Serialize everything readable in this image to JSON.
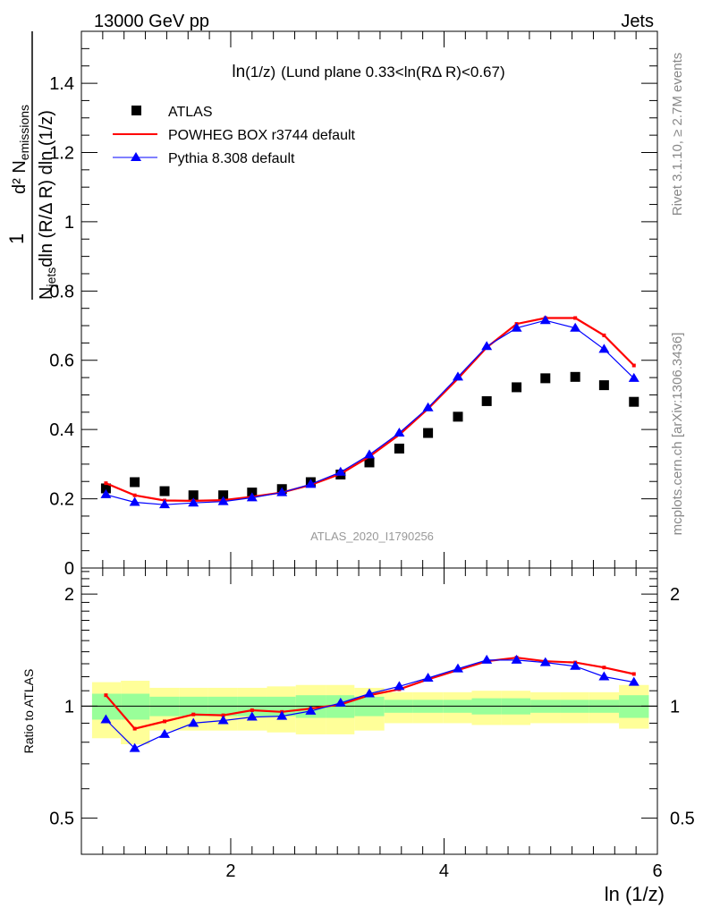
{
  "header": {
    "left": "13000 GeV pp",
    "right": "Jets"
  },
  "plot_title": {
    "main": "ln",
    "main_paren": "(1/z)",
    "rest": "(Lund plane 0.33<ln(RΔ R)<0.67)"
  },
  "ylabel": {
    "one": "1",
    "numerator": "d² N",
    "numerator_sub": "emissions",
    "denominator_a": "N",
    "denominator_sub": "jets",
    "denominator_b": "dln (R/Δ R) dln (1/z)"
  },
  "ratio_ylabel": "Ratio to ATLAS",
  "xlabel": "ln (1/z)",
  "analysis_id": "ATLAS_2020_I1790256",
  "side_text_top": "Rivet 3.1.10, ≥ 2.7M events",
  "side_text_bottom": "mcplots.cern.ch [arXiv:1306.3436]",
  "colors": {
    "atlas": "#000000",
    "powheg": "#ff0000",
    "pythia": "#0000ff",
    "band_inner": "#99ff99",
    "band_outer": "#ffff99"
  },
  "chart_data": [
    {
      "type": "line",
      "panel": "main",
      "xlim": [
        0.6,
        6.0
      ],
      "ylim": [
        0.0,
        1.55
      ],
      "y_ticks": [
        0,
        0.2,
        0.4,
        0.6,
        0.8,
        1,
        1.2,
        1.4
      ],
      "y_tick_labels": [
        "0",
        "0.2",
        "0.4",
        "0.6",
        "0.8",
        "1",
        "1.2",
        "1.4"
      ],
      "series": [
        {
          "name": "ATLAS",
          "marker": "square",
          "x": [
            0.83,
            1.1,
            1.38,
            1.65,
            1.93,
            2.2,
            2.48,
            2.75,
            3.03,
            3.3,
            3.58,
            3.85,
            4.13,
            4.4,
            4.68,
            4.95,
            5.23,
            5.5,
            5.78
          ],
          "y": [
            0.23,
            0.248,
            0.222,
            0.21,
            0.21,
            0.218,
            0.228,
            0.248,
            0.27,
            0.305,
            0.345,
            0.39,
            0.437,
            0.482,
            0.522,
            0.548,
            0.552,
            0.528,
            0.48
          ]
        },
        {
          "name": "POWHEG BOX r3744 default",
          "marker": "dot",
          "x": [
            0.83,
            1.1,
            1.38,
            1.65,
            1.93,
            2.2,
            2.48,
            2.75,
            3.03,
            3.3,
            3.58,
            3.85,
            4.13,
            4.4,
            4.68,
            4.95,
            5.23,
            5.5,
            5.78
          ],
          "y": [
            0.245,
            0.21,
            0.195,
            0.194,
            0.196,
            0.206,
            0.218,
            0.24,
            0.272,
            0.322,
            0.385,
            0.46,
            0.547,
            0.637,
            0.705,
            0.722,
            0.722,
            0.672,
            0.585
          ]
        },
        {
          "name": "Pythia 8.308 default",
          "marker": "triangle",
          "x": [
            0.83,
            1.1,
            1.38,
            1.65,
            1.93,
            2.2,
            2.48,
            2.75,
            3.03,
            3.3,
            3.58,
            3.85,
            4.13,
            4.4,
            4.68,
            4.95,
            5.23,
            5.5,
            5.78
          ],
          "y": [
            0.212,
            0.19,
            0.183,
            0.188,
            0.192,
            0.203,
            0.218,
            0.242,
            0.277,
            0.327,
            0.39,
            0.463,
            0.552,
            0.64,
            0.693,
            0.715,
            0.693,
            0.632,
            0.548
          ]
        }
      ]
    },
    {
      "type": "line",
      "panel": "ratio",
      "xlim": [
        0.6,
        6.0
      ],
      "ylim": [
        0.4,
        2.35
      ],
      "y_ticks": [
        0.5,
        1,
        2
      ],
      "y_tick_labels": [
        "0.5",
        "1",
        "2"
      ],
      "x_ticks": [
        2,
        4,
        6
      ],
      "x_tick_labels": [
        "2",
        "4",
        "6"
      ],
      "bin_edges": [
        0.7,
        0.97,
        1.24,
        1.52,
        1.79,
        2.06,
        2.34,
        2.61,
        2.89,
        3.16,
        3.44,
        3.71,
        3.99,
        4.26,
        4.54,
        4.81,
        5.09,
        5.36,
        5.64,
        5.92
      ],
      "band_inner": {
        "low": [
          0.92,
          0.92,
          0.94,
          0.94,
          0.94,
          0.94,
          0.94,
          0.93,
          0.93,
          0.94,
          0.96,
          0.96,
          0.96,
          0.95,
          0.95,
          0.96,
          0.96,
          0.96,
          0.93
        ],
        "high": [
          1.08,
          1.08,
          1.06,
          1.06,
          1.06,
          1.06,
          1.06,
          1.07,
          1.07,
          1.06,
          1.04,
          1.04,
          1.04,
          1.05,
          1.05,
          1.04,
          1.04,
          1.04,
          1.07
        ]
      },
      "band_outer": {
        "low": [
          0.82,
          0.79,
          0.86,
          0.86,
          0.86,
          0.86,
          0.85,
          0.84,
          0.84,
          0.86,
          0.9,
          0.9,
          0.9,
          0.89,
          0.89,
          0.9,
          0.9,
          0.9,
          0.87
        ],
        "high": [
          1.16,
          1.17,
          1.12,
          1.12,
          1.12,
          1.12,
          1.13,
          1.14,
          1.14,
          1.12,
          1.09,
          1.09,
          1.09,
          1.1,
          1.1,
          1.09,
          1.09,
          1.09,
          1.14
        ]
      },
      "reference_line": 1,
      "series": [
        {
          "name": "POWHEG BOX r3744 default",
          "marker": "dot",
          "x": [
            0.83,
            1.1,
            1.38,
            1.65,
            1.93,
            2.2,
            2.48,
            2.75,
            3.03,
            3.3,
            3.58,
            3.85,
            4.13,
            4.4,
            4.68,
            4.95,
            5.23,
            5.5,
            5.78
          ],
          "y": [
            1.07,
            0.87,
            0.91,
            0.95,
            0.945,
            0.975,
            0.965,
            0.985,
            1.01,
            1.07,
            1.11,
            1.18,
            1.25,
            1.32,
            1.35,
            1.32,
            1.31,
            1.27,
            1.22
          ]
        },
        {
          "name": "Pythia 8.308 default",
          "marker": "triangle",
          "x": [
            0.83,
            1.1,
            1.38,
            1.65,
            1.93,
            2.2,
            2.48,
            2.75,
            3.03,
            3.3,
            3.58,
            3.85,
            4.13,
            4.4,
            4.68,
            4.95,
            5.23,
            5.5,
            5.78
          ],
          "y": [
            0.92,
            0.77,
            0.84,
            0.9,
            0.915,
            0.935,
            0.94,
            0.97,
            1.02,
            1.08,
            1.13,
            1.19,
            1.26,
            1.33,
            1.33,
            1.31,
            1.28,
            1.2,
            1.16
          ]
        }
      ]
    }
  ]
}
